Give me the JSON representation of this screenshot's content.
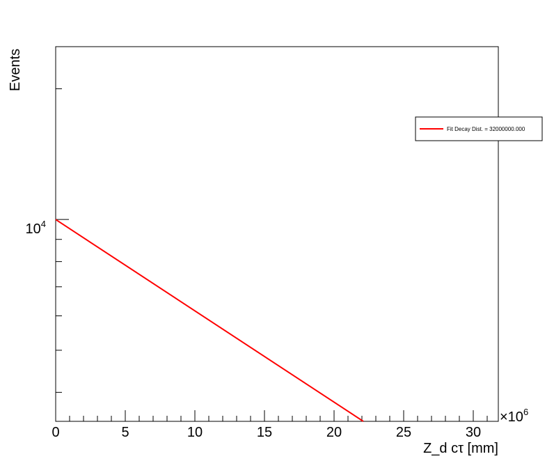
{
  "chart_data": {
    "type": "line",
    "title": "",
    "xlabel": "Z_d cτ [mm]",
    "ylabel": "Events",
    "x_multiplier_label": "×10",
    "x_multiplier_exponent": "6",
    "x_scale_factor": 1000000,
    "xlim": [
      0,
      31800000
    ],
    "ylim": [
      3430,
      25000
    ],
    "y_scale": "log",
    "x_ticks": [
      0,
      5000000,
      10000000,
      15000000,
      20000000,
      25000000,
      30000000
    ],
    "x_tick_labels": [
      "0",
      "5",
      "10",
      "15",
      "20",
      "25",
      "30"
    ],
    "y_major_tick": {
      "base": "10",
      "exponent": "4",
      "value": 10000
    },
    "y_minor_ticks": [
      4000,
      5000,
      6000,
      7000,
      8000,
      9000,
      20000
    ],
    "grid": false,
    "legend_position": "top-right",
    "series": [
      {
        "name": "Fit Decay Dist. = 32000000.000",
        "color": "#ff0000",
        "x": [
          0,
          22100000
        ],
        "y": [
          10000,
          3430
        ]
      }
    ]
  }
}
